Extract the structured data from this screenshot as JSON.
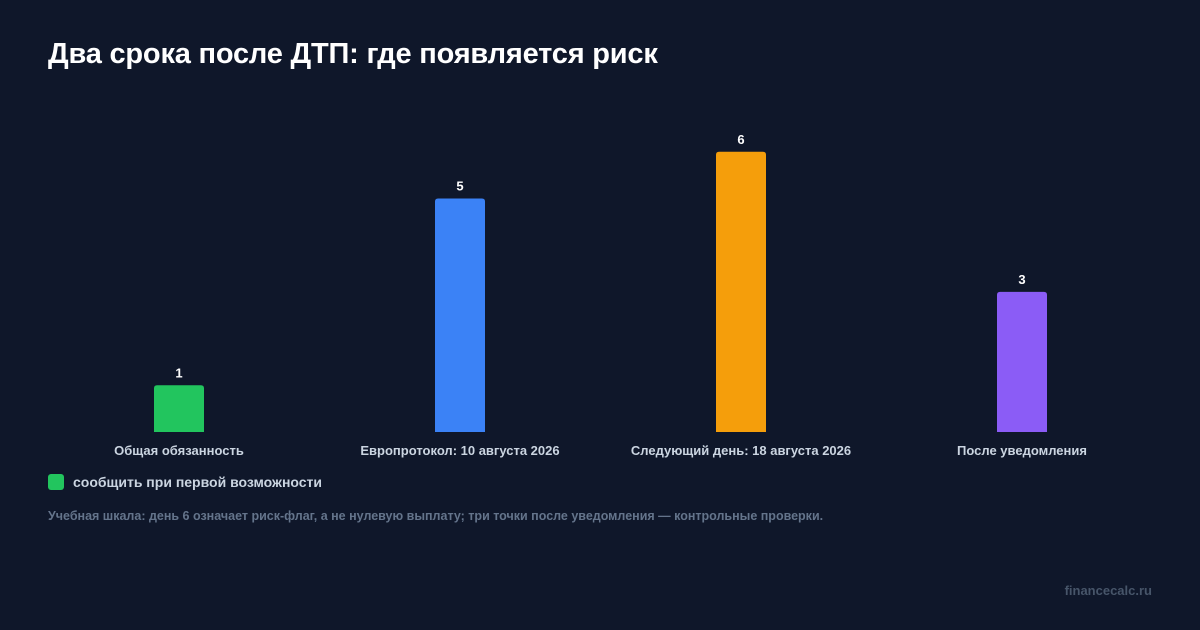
{
  "title": "Два срока после ДТП: где появляется риск",
  "chart_data": {
    "type": "bar",
    "categories": [
      "Общая обязанность",
      "Европротокол: 10 августа 2026",
      "Следующий день: 18 августа 2026",
      "После уведомления"
    ],
    "values": [
      1,
      5,
      6,
      3
    ],
    "colors": [
      "#22c55e",
      "#3b82f6",
      "#f59e0b",
      "#8b5cf6"
    ],
    "data_labels": [
      "1",
      "5",
      "6",
      "3"
    ],
    "ylim": [
      0,
      7
    ],
    "grid": false,
    "legend": [
      {
        "label": "сообщить при первой возможности",
        "color": "#22c55e"
      }
    ],
    "legend_position": "bottom-left"
  },
  "note": "Учебная шкала: день 6 означает риск-флаг, а не нулевую выплату; три точки после уведомления — контрольные проверки.",
  "brand": "financecalc.ru"
}
